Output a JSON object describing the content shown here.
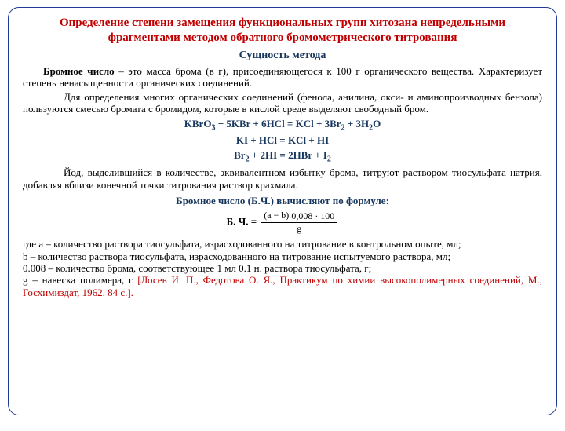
{
  "colors": {
    "title": "#c00000",
    "subtitle": "#17365d",
    "eqn": "#17365d",
    "ref": "#c00000",
    "border": "#1f3a93"
  },
  "title_l1": "Определение степени замещения функциональных групп хитозана непредельными",
  "title_l2": "фрагментами методом обратного бромометрического титрования",
  "subtitle": "Сущность метода",
  "p1_lead": "Бромное число",
  "p1_rest": " – это масса брома (в г), присоединяющегося к    100 г органического вещества. Характеризует степень ненасыщенности органических соединений.",
  "p2": "Для определения многих органических соединений (фенола, анилина, окси- и аминопроизводных бензола) пользуются смесью бромата с бромидом, которые в кислой среде выделяют свободный бром.",
  "eq1_html": "KBrO<sub>3</sub> + 5KBr + 6HCl = KCl + 3Br<sub>2</sub> + 3H<sub>2</sub>O",
  "eq2_html": "KI + HCl = KCl + HI",
  "eq3_html": "Br<sub>2</sub> + 2HI = 2HBr + I<sub>2</sub>",
  "p3": "Йод, выделившийся в количестве, эквивалентном избытку брома, титруют раствором тиосульфата натрия, добавляя вблизи конечной точки титрования раствор крахмала.",
  "formula_head": "Бромное число (Б.Ч.) вычисляют по формуле:",
  "formula": {
    "label": "Б. Ч. =",
    "numerator": "(a − b)",
    "denom": "g",
    "tail": " 0,008 · 100"
  },
  "def_a": "где a – количество раствора тиосульфата, израсходованного на титрование в контрольном опыте, мл;",
  "def_b": "b – количество раствора тиосульфата, израсходованного на титрование испытуемого раствора, мл;",
  "def_c": "0.008 – количество брома, соответствующее 1 мл 0.1 н. раствора тиосульфата, г;",
  "def_g_lead": "g – навеска полимера, г ",
  "ref": "[Лосев И. П., Федотова О. Я., Практикум по химии высокополимерных соединений, М., Госхимиздат, 1962. 84 с.]."
}
